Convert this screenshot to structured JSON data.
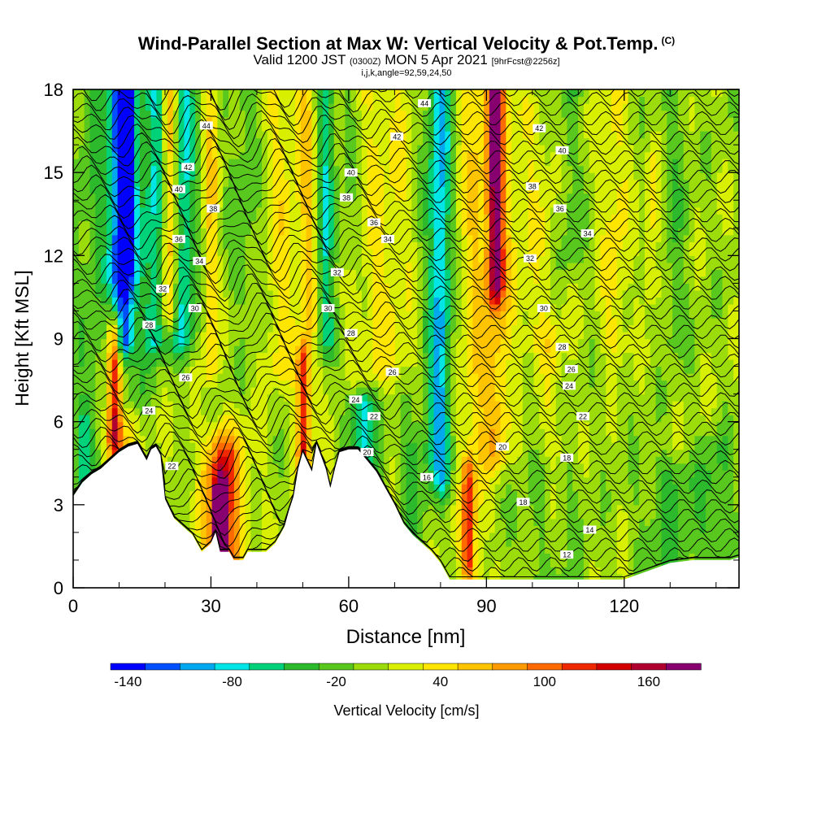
{
  "title": {
    "line1": "Wind-Parallel Section at Max W: Vertical Velocity & Pot.Temp.",
    "line1_mark": "(C)",
    "line2_a": "Valid 1200 JST",
    "line2_b": "(0300Z)",
    "line2_c": "MON 5 Apr 2021",
    "line2_d": "[9hrFcst@2256z]",
    "line3": "i,j,k,angle=92,59,24,50"
  },
  "chart_data": {
    "type": "heatmap",
    "xlabel": "Distance [nm]",
    "ylabel": "Height [Kft MSL]",
    "xlim": [
      0,
      145
    ],
    "ylim": [
      0,
      18
    ],
    "x_ticks": [
      {
        "value": 0,
        "label": "0"
      },
      {
        "value": 30,
        "label": "30"
      },
      {
        "value": 60,
        "label": "60"
      },
      {
        "value": 90,
        "label": "90"
      },
      {
        "value": 120,
        "label": "120"
      }
    ],
    "y_ticks": [
      {
        "value": 0,
        "label": "0"
      },
      {
        "value": 3,
        "label": "3"
      },
      {
        "value": 6,
        "label": "6"
      },
      {
        "value": 9,
        "label": "9"
      },
      {
        "value": 12,
        "label": "12"
      },
      {
        "value": 15,
        "label": "15"
      },
      {
        "value": 18,
        "label": "18"
      }
    ],
    "colorbar": {
      "label": "Vertical Velocity [cm/s]",
      "min": -150,
      "max": 190,
      "step": 20,
      "tick_labels": [
        {
          "value": -140,
          "label": "-140"
        },
        {
          "value": -80,
          "label": "-80"
        },
        {
          "value": -20,
          "label": "-20"
        },
        {
          "value": 40,
          "label": "40"
        },
        {
          "value": 100,
          "label": "100"
        },
        {
          "value": 160,
          "label": "160"
        }
      ],
      "colors": [
        "#0000ff",
        "#0050ff",
        "#00a8f0",
        "#00e6e6",
        "#00d27a",
        "#2cb92c",
        "#58c81e",
        "#9bdc0a",
        "#d8f000",
        "#ffe600",
        "#ffc400",
        "#ff9a00",
        "#ff6a00",
        "#f02800",
        "#d20000",
        "#b00030",
        "#880070"
      ]
    },
    "terrain": [
      [
        0,
        3.3
      ],
      [
        2,
        3.8
      ],
      [
        4,
        4.1
      ],
      [
        6,
        4.3
      ],
      [
        8,
        4.6
      ],
      [
        10,
        4.9
      ],
      [
        12,
        5.1
      ],
      [
        14,
        5.2
      ],
      [
        16,
        4.6
      ],
      [
        17,
        5
      ],
      [
        18,
        5.1
      ],
      [
        19,
        4.8
      ],
      [
        20,
        3.2
      ],
      [
        22,
        2.5
      ],
      [
        24,
        2.2
      ],
      [
        26,
        1.9
      ],
      [
        27,
        1.6
      ],
      [
        28,
        1.3
      ],
      [
        30,
        1.6
      ],
      [
        31,
        2
      ],
      [
        32,
        1.3
      ],
      [
        34,
        1.3
      ],
      [
        35,
        1
      ],
      [
        37,
        1
      ],
      [
        38,
        1.3
      ],
      [
        40,
        1.3
      ],
      [
        42,
        1.3
      ],
      [
        44,
        1.6
      ],
      [
        46,
        2.2
      ],
      [
        47,
        2.8
      ],
      [
        48,
        3.3
      ],
      [
        49,
        4.3
      ],
      [
        50,
        4.9
      ],
      [
        52,
        4.2
      ],
      [
        53,
        5.2
      ],
      [
        55,
        4.3
      ],
      [
        56,
        3.6
      ],
      [
        57,
        4.3
      ],
      [
        58,
        4.9
      ],
      [
        60,
        5
      ],
      [
        62,
        5
      ],
      [
        64,
        4.6
      ],
      [
        66,
        4.2
      ],
      [
        68,
        3.6
      ],
      [
        70,
        3
      ],
      [
        72,
        2.3
      ],
      [
        74,
        1.9
      ],
      [
        76,
        1.6
      ],
      [
        78,
        1.3
      ],
      [
        80,
        0.9
      ],
      [
        82,
        0.3
      ],
      [
        84,
        0.3
      ],
      [
        88,
        0.3
      ],
      [
        92,
        0.3
      ],
      [
        100,
        0.3
      ],
      [
        110,
        0.3
      ],
      [
        120,
        0.3
      ],
      [
        125,
        0.6
      ],
      [
        130,
        0.9
      ],
      [
        135,
        1
      ],
      [
        140,
        1
      ],
      [
        143,
        1
      ],
      [
        145,
        1.1
      ]
    ],
    "velocity_features": [
      {
        "x": 11,
        "y0": 9,
        "y1": 18,
        "w": 2.2,
        "value": -140
      },
      {
        "x": 11,
        "y0": 7,
        "y1": 18,
        "w": 4.5,
        "value": -60
      },
      {
        "x": 18,
        "y0": 9,
        "y1": 18,
        "w": 2.5,
        "value": -70
      },
      {
        "x": 24,
        "y0": 9,
        "y1": 18,
        "w": 2.6,
        "value": -80
      },
      {
        "x": 21,
        "y0": 10,
        "y1": 18,
        "w": 1.8,
        "value": 90
      },
      {
        "x": 30,
        "y0": 8,
        "y1": 18,
        "w": 1.5,
        "value": 50
      },
      {
        "x": 9,
        "y0": 5.5,
        "y1": 9,
        "w": 1.4,
        "value": 130
      },
      {
        "x": 10,
        "y0": 4.5,
        "y1": 10,
        "w": 3.5,
        "value": 60
      },
      {
        "x": 32,
        "y0": 1.5,
        "y1": 3.3,
        "w": 1.3,
        "value": 180
      },
      {
        "x": 32.5,
        "y0": 1.3,
        "y1": 4.6,
        "w": 3.2,
        "value": 90
      },
      {
        "x": 33,
        "y0": 1.2,
        "y1": 5.5,
        "w": 6,
        "value": 40
      },
      {
        "x": 55,
        "y0": 9,
        "y1": 18,
        "w": 2.0,
        "value": -70
      },
      {
        "x": 51,
        "y0": 5,
        "y1": 18,
        "w": 2.2,
        "value": 50
      },
      {
        "x": 50,
        "y0": 4.5,
        "y1": 8,
        "w": 1.2,
        "value": 90
      },
      {
        "x": 45,
        "y0": 8,
        "y1": 18,
        "w": 3.2,
        "value": 35
      },
      {
        "x": 63,
        "y0": 4.3,
        "y1": 6.5,
        "w": 3.0,
        "value": -80
      },
      {
        "x": 80,
        "y0": 4,
        "y1": 18,
        "w": 2.2,
        "value": -80
      },
      {
        "x": 78,
        "y0": 5,
        "y1": 18,
        "w": 3.8,
        "value": -30
      },
      {
        "x": 92,
        "y0": 11,
        "y1": 18,
        "w": 1.6,
        "value": 130
      },
      {
        "x": 92,
        "y0": 5,
        "y1": 18,
        "w": 3.0,
        "value": 60
      },
      {
        "x": 87,
        "y0": 0.5,
        "y1": 18,
        "w": 3.0,
        "value": 40
      },
      {
        "x": 86,
        "y0": 1,
        "y1": 4,
        "w": 1.3,
        "value": 80
      },
      {
        "x": 68,
        "y0": 8,
        "y1": 18,
        "w": 9,
        "value": 30
      },
      {
        "x": 100,
        "y0": 9,
        "y1": 17,
        "w": 6,
        "value": 25
      },
      {
        "x": 104,
        "y0": 1,
        "y1": 9,
        "w": 3,
        "value": 20
      },
      {
        "x": 118,
        "y0": 9,
        "y1": 18,
        "w": 3,
        "value": 35
      },
      {
        "x": 126,
        "y0": 11,
        "y1": 15,
        "w": 1.5,
        "value": 40
      },
      {
        "x": 4,
        "y0": 4,
        "y1": 18,
        "w": 4,
        "value": -25
      },
      {
        "x": 37,
        "y0": 11,
        "y1": 18,
        "w": 3,
        "value": -25
      },
      {
        "x": 60,
        "y0": 12,
        "y1": 18,
        "w": 2.5,
        "value": -25
      },
      {
        "x": 108,
        "y0": 12,
        "y1": 18,
        "w": 2.5,
        "value": -25
      },
      {
        "x": 131,
        "y0": 9,
        "y1": 18,
        "w": 2.5,
        "value": -25
      },
      {
        "x": 130,
        "y0": 1,
        "y1": 4,
        "w": 6,
        "value": -35
      },
      {
        "x": 140,
        "y0": 1,
        "y1": 5,
        "w": 4,
        "value": -30
      },
      {
        "x": 104,
        "y0": 0.5,
        "y1": 4,
        "w": 6,
        "value": -25
      },
      {
        "x": 74,
        "y0": 2,
        "y1": 5,
        "w": 3,
        "value": -30
      },
      {
        "x": 2,
        "y0": 3.5,
        "y1": 6,
        "w": 2,
        "value": -35
      }
    ],
    "theta_labels": [
      {
        "x": 29,
        "y": 16.7,
        "label": "44"
      },
      {
        "x": 25,
        "y": 15.2,
        "label": "42"
      },
      {
        "x": 23,
        "y": 14.4,
        "label": "40"
      },
      {
        "x": 30.5,
        "y": 13.7,
        "label": "38"
      },
      {
        "x": 23,
        "y": 12.6,
        "label": "36"
      },
      {
        "x": 27.5,
        "y": 11.8,
        "label": "34"
      },
      {
        "x": 19.5,
        "y": 10.8,
        "label": "32"
      },
      {
        "x": 26.5,
        "y": 10.1,
        "label": "30"
      },
      {
        "x": 16.5,
        "y": 9.5,
        "label": "28"
      },
      {
        "x": 24.5,
        "y": 7.6,
        "label": "26"
      },
      {
        "x": 16.5,
        "y": 6.4,
        "label": "24"
      },
      {
        "x": 21.5,
        "y": 4.4,
        "label": "22"
      },
      {
        "x": 76.5,
        "y": 17.5,
        "label": "44"
      },
      {
        "x": 70.5,
        "y": 16.3,
        "label": "42"
      },
      {
        "x": 60.5,
        "y": 15,
        "label": "40"
      },
      {
        "x": 59.5,
        "y": 14.1,
        "label": "38"
      },
      {
        "x": 65.5,
        "y": 13.2,
        "label": "36"
      },
      {
        "x": 68.5,
        "y": 12.6,
        "label": "34"
      },
      {
        "x": 57.5,
        "y": 11.4,
        "label": "32"
      },
      {
        "x": 55.5,
        "y": 10.1,
        "label": "30"
      },
      {
        "x": 60.5,
        "y": 9.2,
        "label": "28"
      },
      {
        "x": 69.5,
        "y": 7.8,
        "label": "26"
      },
      {
        "x": 61.5,
        "y": 6.8,
        "label": "24"
      },
      {
        "x": 65.5,
        "y": 6.2,
        "label": "22"
      },
      {
        "x": 64,
        "y": 4.9,
        "label": "20"
      },
      {
        "x": 77,
        "y": 4,
        "label": "16"
      },
      {
        "x": 101.5,
        "y": 16.6,
        "label": "42"
      },
      {
        "x": 106.5,
        "y": 15.8,
        "label": "40"
      },
      {
        "x": 100,
        "y": 14.5,
        "label": "38"
      },
      {
        "x": 106,
        "y": 13.7,
        "label": "36"
      },
      {
        "x": 112,
        "y": 12.8,
        "label": "34"
      },
      {
        "x": 99.5,
        "y": 11.9,
        "label": "32"
      },
      {
        "x": 102.5,
        "y": 10.1,
        "label": "30"
      },
      {
        "x": 106.5,
        "y": 8.7,
        "label": "28"
      },
      {
        "x": 108.5,
        "y": 7.9,
        "label": "26"
      },
      {
        "x": 108,
        "y": 7.3,
        "label": "24"
      },
      {
        "x": 111,
        "y": 6.2,
        "label": "22"
      },
      {
        "x": 93.5,
        "y": 5.1,
        "label": "20"
      },
      {
        "x": 107.5,
        "y": 4.7,
        "label": "18"
      },
      {
        "x": 98,
        "y": 3.1,
        "label": "18"
      },
      {
        "x": 112.5,
        "y": 2.1,
        "label": "14"
      },
      {
        "x": 107.5,
        "y": 1.2,
        "label": "12"
      }
    ]
  }
}
